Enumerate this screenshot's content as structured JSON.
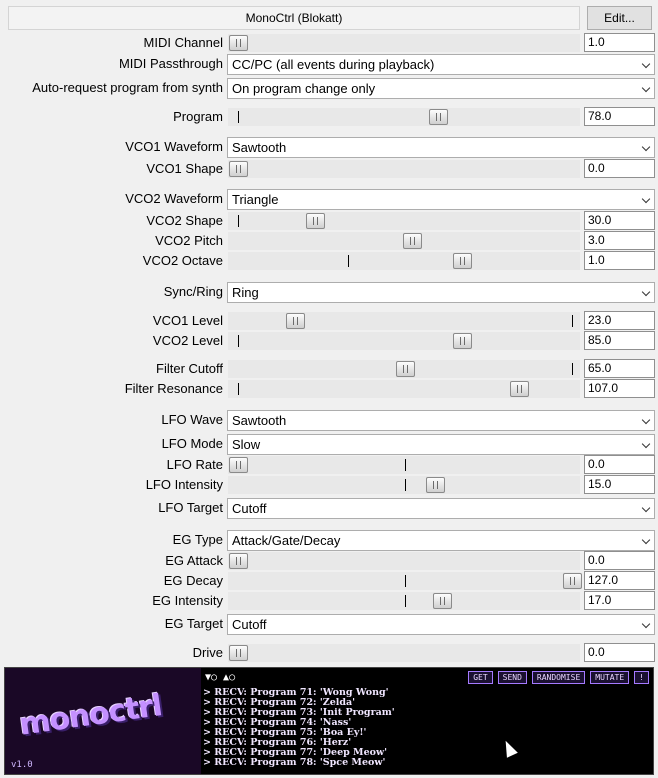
{
  "window": {
    "title": "MonoCtrl (Blokatt)",
    "edit_label": "Edit..."
  },
  "params": [
    {
      "id": "midi-channel",
      "type": "slider",
      "label": "MIDI Channel",
      "value": "1.0",
      "pos": 0,
      "ticks": []
    },
    {
      "id": "midi-passthrough",
      "type": "dropdown",
      "label": "MIDI Passthrough",
      "value": "CC/PC (all events during playback)"
    },
    {
      "id": "auto-request",
      "type": "dropdown",
      "label": "Auto-request program from synth",
      "value": "On program change only"
    },
    {
      "id": "program",
      "type": "slider",
      "label": "Program",
      "value": "78.0",
      "pos": 0.6,
      "ticks": [
        0
      ]
    },
    {
      "id": "vco1-waveform",
      "type": "dropdown",
      "label": "VCO1 Waveform",
      "value": "Sawtooth"
    },
    {
      "id": "vco1-shape",
      "type": "slider",
      "label": "VCO1 Shape",
      "value": "0.0",
      "pos": 0,
      "ticks": []
    },
    {
      "id": "vco2-waveform",
      "type": "dropdown",
      "label": "VCO2 Waveform",
      "value": "Triangle"
    },
    {
      "id": "vco2-shape",
      "type": "slider",
      "label": "VCO2 Shape",
      "value": "30.0",
      "pos": 0.23,
      "ticks": [
        0
      ]
    },
    {
      "id": "vco2-pitch",
      "type": "slider",
      "label": "VCO2 Pitch",
      "value": "3.0",
      "pos": 0.52,
      "ticks": []
    },
    {
      "id": "vco2-octave",
      "type": "slider",
      "label": "VCO2 Octave",
      "value": "1.0",
      "pos": 0.67,
      "ticks": [
        0.33
      ]
    },
    {
      "id": "sync-ring",
      "type": "dropdown",
      "label": "Sync/Ring",
      "value": "Ring"
    },
    {
      "id": "vco1-level",
      "type": "slider",
      "label": "VCO1 Level",
      "value": "23.0",
      "pos": 0.17,
      "ticks": [
        1
      ]
    },
    {
      "id": "vco2-level",
      "type": "slider",
      "label": "VCO2 Level",
      "value": "85.0",
      "pos": 0.67,
      "ticks": [
        0
      ]
    },
    {
      "id": "filter-cutoff",
      "type": "slider",
      "label": "Filter Cutoff",
      "value": "65.0",
      "pos": 0.5,
      "ticks": [
        1
      ]
    },
    {
      "id": "filter-resonance",
      "type": "slider",
      "label": "Filter Resonance",
      "value": "107.0",
      "pos": 0.84,
      "ticks": [
        0
      ]
    },
    {
      "id": "lfo-wave",
      "type": "dropdown",
      "label": "LFO Wave",
      "value": "Sawtooth"
    },
    {
      "id": "lfo-mode",
      "type": "dropdown",
      "label": "LFO Mode",
      "value": "Slow"
    },
    {
      "id": "lfo-rate",
      "type": "slider",
      "label": "LFO Rate",
      "value": "0.0",
      "pos": 0,
      "ticks": [
        0.5
      ]
    },
    {
      "id": "lfo-intensity",
      "type": "slider",
      "label": "LFO Intensity",
      "value": "15.0",
      "pos": 0.59,
      "ticks": [
        0.5
      ]
    },
    {
      "id": "lfo-target",
      "type": "dropdown",
      "label": "LFO Target",
      "value": "Cutoff"
    },
    {
      "id": "eg-type",
      "type": "dropdown",
      "label": "EG Type",
      "value": "Attack/Gate/Decay"
    },
    {
      "id": "eg-attack",
      "type": "slider",
      "label": "EG Attack",
      "value": "0.0",
      "pos": 0,
      "ticks": []
    },
    {
      "id": "eg-decay",
      "type": "slider",
      "label": "EG Decay",
      "value": "127.0",
      "pos": 1,
      "ticks": [
        0.5
      ]
    },
    {
      "id": "eg-intensity",
      "type": "slider",
      "label": "EG Intensity",
      "value": "17.0",
      "pos": 0.61,
      "ticks": [
        0.5
      ]
    },
    {
      "id": "eg-target",
      "type": "dropdown",
      "label": "EG Target",
      "value": "Cutoff"
    },
    {
      "id": "drive",
      "type": "slider",
      "label": "Drive",
      "value": "0.0",
      "pos": 0,
      "ticks": []
    }
  ],
  "bottom": {
    "logo_text": "monoctrl",
    "version": "v1.0",
    "indicators": "▼○ ▲○",
    "buttons": [
      "GET",
      "SEND",
      "RANDOMISE",
      "MUTATE",
      "!"
    ],
    "log": [
      "> RECV: Program 71: 'Wong Wong'",
      "> RECV: Program 72: 'Zelda'",
      "> RECV: Program 73: 'Init Program'",
      "> RECV: Program 74: 'Nass'",
      "> RECV: Program 75: 'Boa Ey!'",
      "> RECV: Program 76: 'Herz'",
      "> RECV: Program 77: 'Deep Meow'",
      "> RECV: Program 78: 'Spce Meow'"
    ]
  },
  "colors": {
    "logo": "#c490ff",
    "panel": "#000000",
    "accent": "#a57aff"
  }
}
